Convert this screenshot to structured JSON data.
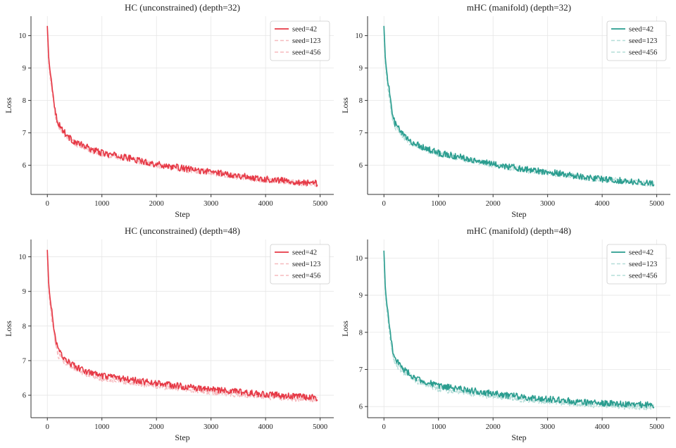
{
  "chart_data": [
    {
      "type": "line",
      "title": "HC (unconstrained) (depth=32)",
      "xlabel": "Step",
      "ylabel": "Loss",
      "xlim": [
        -300,
        5250
      ],
      "ylim": [
        5.1,
        10.6
      ],
      "xticks": [
        "0",
        "1000",
        "2000",
        "3000",
        "4000",
        "5000"
      ],
      "yticks": [
        "6",
        "7",
        "8",
        "9",
        "10"
      ],
      "grid": true,
      "legend_position": "top-right",
      "color": "#e63946",
      "x": [
        0,
        25,
        50,
        100,
        150,
        200,
        300,
        400,
        500,
        600,
        800,
        1000,
        1250,
        1500,
        1750,
        2000,
        2250,
        2500,
        2750,
        3000,
        3250,
        3500,
        3750,
        4000,
        4250,
        4500,
        4750,
        4950
      ],
      "series": [
        {
          "name": "seed=42",
          "style": "solid",
          "values": [
            10.3,
            9.3,
            8.9,
            8.3,
            7.6,
            7.3,
            7.05,
            6.85,
            6.72,
            6.65,
            6.5,
            6.38,
            6.3,
            6.22,
            6.12,
            6.03,
            5.97,
            5.9,
            5.84,
            5.8,
            5.74,
            5.68,
            5.62,
            5.57,
            5.54,
            5.5,
            5.46,
            5.44
          ]
        },
        {
          "name": "seed=123",
          "style": "dashed",
          "values": [
            10.2,
            9.2,
            8.8,
            8.2,
            7.5,
            7.25,
            7.0,
            6.82,
            6.7,
            6.62,
            6.48,
            6.35,
            6.27,
            6.2,
            6.1,
            6.02,
            5.95,
            5.88,
            5.83,
            5.78,
            5.72,
            5.66,
            5.6,
            5.56,
            5.53,
            5.49,
            5.45,
            5.43
          ]
        },
        {
          "name": "seed=456",
          "style": "dashed",
          "values": [
            10.1,
            9.1,
            8.7,
            8.1,
            7.45,
            7.2,
            6.98,
            6.8,
            6.68,
            6.6,
            6.46,
            6.34,
            6.26,
            6.18,
            6.09,
            6.01,
            5.94,
            5.87,
            5.82,
            5.77,
            5.71,
            5.65,
            5.59,
            5.55,
            5.52,
            5.48,
            5.44,
            5.42
          ]
        }
      ]
    },
    {
      "type": "line",
      "title": "mHC (manifold) (depth=32)",
      "xlabel": "Step",
      "ylabel": "Loss",
      "xlim": [
        -300,
        5250
      ],
      "ylim": [
        5.1,
        10.6
      ],
      "xticks": [
        "0",
        "1000",
        "2000",
        "3000",
        "4000",
        "5000"
      ],
      "yticks": [
        "6",
        "7",
        "8",
        "9",
        "10"
      ],
      "grid": true,
      "legend_position": "top-right",
      "color": "#2a9d8f",
      "x": [
        0,
        25,
        50,
        100,
        150,
        200,
        300,
        400,
        500,
        600,
        800,
        1000,
        1250,
        1500,
        1750,
        2000,
        2250,
        2500,
        2750,
        3000,
        3250,
        3500,
        3750,
        4000,
        4250,
        4500,
        4750,
        4950
      ],
      "series": [
        {
          "name": "seed=42",
          "style": "solid",
          "values": [
            10.3,
            9.3,
            8.9,
            8.3,
            7.6,
            7.3,
            7.05,
            6.85,
            6.72,
            6.65,
            6.5,
            6.38,
            6.3,
            6.22,
            6.12,
            6.03,
            5.97,
            5.9,
            5.84,
            5.8,
            5.74,
            5.68,
            5.62,
            5.57,
            5.54,
            5.5,
            5.46,
            5.46
          ]
        },
        {
          "name": "seed=123",
          "style": "dashed",
          "values": [
            10.2,
            9.2,
            8.8,
            8.2,
            7.5,
            7.25,
            7.0,
            6.82,
            6.7,
            6.62,
            6.48,
            6.35,
            6.27,
            6.2,
            6.1,
            6.02,
            5.95,
            5.88,
            5.83,
            5.78,
            5.72,
            5.66,
            5.6,
            5.56,
            5.53,
            5.49,
            5.45,
            5.44
          ]
        },
        {
          "name": "seed=456",
          "style": "dashed",
          "values": [
            10.1,
            9.1,
            8.7,
            8.1,
            7.45,
            7.2,
            6.98,
            6.8,
            6.68,
            6.6,
            6.46,
            6.34,
            6.26,
            6.18,
            6.09,
            6.01,
            5.94,
            5.87,
            5.82,
            5.77,
            5.71,
            5.65,
            5.59,
            5.55,
            5.52,
            5.48,
            5.44,
            5.43
          ]
        }
      ]
    },
    {
      "type": "line",
      "title": "HC (unconstrained) (depth=48)",
      "xlabel": "Step",
      "ylabel": "Loss",
      "xlim": [
        -300,
        5250
      ],
      "ylim": [
        5.35,
        10.5
      ],
      "xticks": [
        "0",
        "1000",
        "2000",
        "3000",
        "4000",
        "5000"
      ],
      "yticks": [
        "6",
        "7",
        "8",
        "9",
        "10"
      ],
      "grid": true,
      "legend_position": "top-right",
      "color": "#e63946",
      "x": [
        0,
        25,
        50,
        100,
        150,
        200,
        300,
        400,
        500,
        600,
        800,
        1000,
        1250,
        1500,
        1750,
        2000,
        2250,
        2500,
        2750,
        3000,
        3250,
        3500,
        3750,
        4000,
        4250,
        4500,
        4750,
        4950
      ],
      "series": [
        {
          "name": "seed=42",
          "style": "solid",
          "values": [
            10.2,
            9.2,
            8.8,
            8.2,
            7.6,
            7.3,
            7.1,
            6.95,
            6.85,
            6.75,
            6.65,
            6.55,
            6.5,
            6.45,
            6.4,
            6.35,
            6.3,
            6.25,
            6.2,
            6.18,
            6.13,
            6.1,
            6.06,
            6.02,
            6.0,
            5.97,
            5.95,
            5.93
          ]
        },
        {
          "name": "seed=123",
          "style": "dashed",
          "values": [
            10.1,
            9.1,
            8.7,
            8.1,
            7.5,
            7.2,
            7.05,
            6.9,
            6.8,
            6.7,
            6.6,
            6.5,
            6.45,
            6.4,
            6.35,
            6.3,
            6.25,
            6.2,
            6.17,
            6.12,
            6.08,
            6.05,
            6.02,
            5.98,
            5.96,
            5.93,
            5.9,
            5.88
          ]
        },
        {
          "name": "seed=456",
          "style": "dashed",
          "values": [
            10.0,
            9.0,
            8.6,
            8.0,
            7.45,
            7.15,
            7.0,
            6.88,
            6.78,
            6.68,
            6.58,
            6.48,
            6.42,
            6.38,
            6.32,
            6.28,
            6.22,
            6.18,
            6.14,
            6.1,
            6.06,
            6.02,
            5.99,
            5.96,
            5.93,
            5.9,
            5.88,
            5.86
          ]
        }
      ]
    },
    {
      "type": "line",
      "title": "mHC (manifold) (depth=48)",
      "xlabel": "Step",
      "ylabel": "Loss",
      "xlim": [
        -300,
        5250
      ],
      "ylim": [
        5.7,
        10.5
      ],
      "xticks": [
        "0",
        "1000",
        "2000",
        "3000",
        "4000",
        "5000"
      ],
      "yticks": [
        "6",
        "7",
        "8",
        "9",
        "10"
      ],
      "grid": true,
      "legend_position": "top-right",
      "color": "#2a9d8f",
      "x": [
        0,
        25,
        50,
        100,
        150,
        200,
        300,
        400,
        500,
        600,
        800,
        1000,
        1250,
        1500,
        1750,
        2000,
        2250,
        2500,
        2750,
        3000,
        3250,
        3500,
        3750,
        4000,
        4250,
        4500,
        4750,
        4950
      ],
      "series": [
        {
          "name": "seed=42",
          "style": "solid",
          "values": [
            10.2,
            9.2,
            8.8,
            8.2,
            7.6,
            7.3,
            7.1,
            6.95,
            6.85,
            6.75,
            6.65,
            6.55,
            6.5,
            6.45,
            6.4,
            6.35,
            6.3,
            6.27,
            6.23,
            6.2,
            6.17,
            6.14,
            6.11,
            6.1,
            6.08,
            6.06,
            6.05,
            6.05
          ]
        },
        {
          "name": "seed=123",
          "style": "dashed",
          "values": [
            10.1,
            9.1,
            8.7,
            8.1,
            7.5,
            7.2,
            7.05,
            6.9,
            6.8,
            6.7,
            6.6,
            6.5,
            6.45,
            6.4,
            6.35,
            6.3,
            6.25,
            6.22,
            6.18,
            6.15,
            6.12,
            6.09,
            6.07,
            6.05,
            6.03,
            6.01,
            6.0,
            6.0
          ]
        },
        {
          "name": "seed=456",
          "style": "dashed",
          "values": [
            10.0,
            9.0,
            8.6,
            8.0,
            7.45,
            7.15,
            7.0,
            6.88,
            6.78,
            6.68,
            6.58,
            6.48,
            6.42,
            6.38,
            6.32,
            6.28,
            6.23,
            6.2,
            6.16,
            6.13,
            6.1,
            6.07,
            6.05,
            6.03,
            6.01,
            5.99,
            5.98,
            5.98
          ]
        }
      ]
    }
  ]
}
